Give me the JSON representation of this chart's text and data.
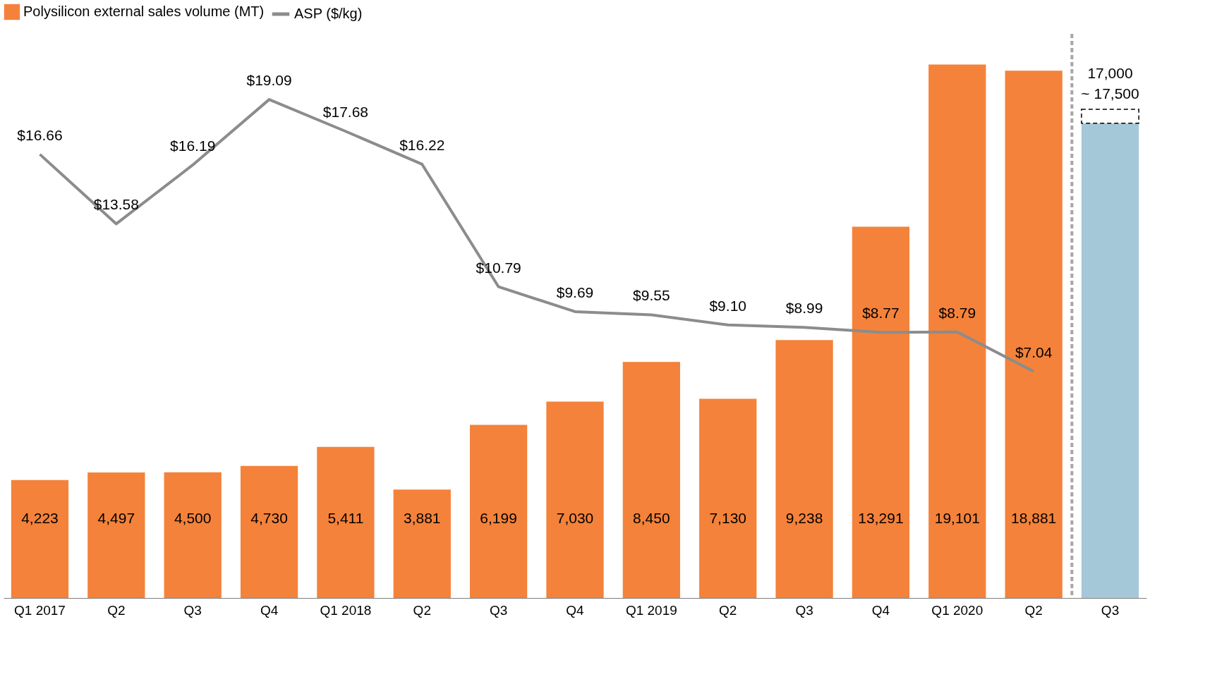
{
  "chart_data": {
    "type": "bar",
    "stacked": true,
    "categories": [
      "Q1 2017",
      "Q2",
      "Q3",
      "Q4",
      "Q1 2018",
      "Q2",
      "Q3",
      "Q4",
      "Q1 2019",
      "Q2",
      "Q3",
      "Q4",
      "Q1 2020",
      "Q2",
      "Q3"
    ],
    "series": [
      {
        "name": "Polysilicon external sales volume (MT)",
        "color": "#f4823a",
        "colors": [
          "#f4823a",
          "#f4823a",
          "#f4823a",
          "#f4823a",
          "#f4823a",
          "#f4823a",
          "#f4823a",
          "#f4823a",
          "#f4823a",
          "#f4823a",
          "#f4823a",
          "#f4823a",
          "#f4823a",
          "#f4823a",
          "#a5c8d8"
        ],
        "values": [
          4223,
          4497,
          4500,
          4730,
          5411,
          3881,
          6199,
          7030,
          8450,
          7130,
          9238,
          13291,
          19101,
          18881,
          17000
        ],
        "value_labels": [
          "4,223",
          "4,497",
          "4,500",
          "4,730",
          "5,411",
          "3,881",
          "6,199",
          "7,030",
          "8,450",
          "7,130",
          "9,238",
          "13,291",
          "19,101",
          "18,881",
          null
        ]
      },
      {
        "color": "#ffffff",
        "line_style": "dashed",
        "values": [
          null,
          null,
          null,
          null,
          null,
          null,
          null,
          null,
          null,
          null,
          null,
          null,
          null,
          null,
          500
        ]
      },
      {
        "name": "ASP ($/kg)",
        "type": "line",
        "axis": "y2",
        "color": "#8c8c8c",
        "marker": "none",
        "values": [
          16.66,
          13.58,
          16.19,
          19.09,
          17.68,
          16.22,
          10.79,
          9.69,
          9.55,
          9.1,
          8.99,
          8.77,
          8.79,
          7.04,
          null
        ],
        "value_labels": [
          "$16.66",
          "$13.58",
          "$16.19",
          "$19.09",
          "$17.68",
          "$16.22",
          "$10.79",
          "$9.69",
          "$9.55",
          "$9.10",
          "$8.99",
          "$8.77",
          "$8.79",
          "$7.04",
          null
        ]
      }
    ],
    "ylim": [
      0,
      20200
    ],
    "y2lim": [
      -3,
      22
    ],
    "legend": "top",
    "grid": false,
    "tick_labels": "x",
    "annotations": [
      "17,000\n~ 17,500"
    ]
  }
}
